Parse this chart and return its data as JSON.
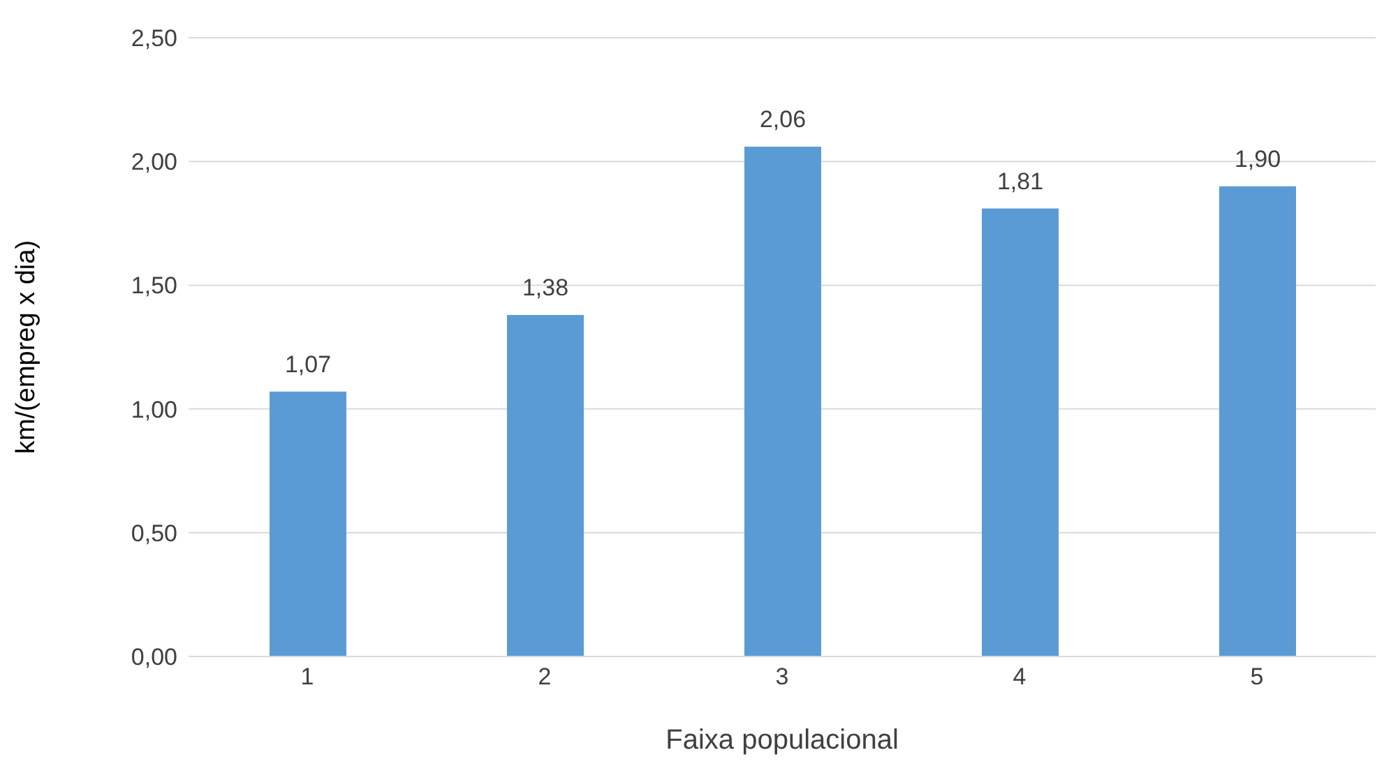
{
  "chart_data": {
    "type": "bar",
    "xlabel": "Faixa populacional",
    "ylabel": "km/(empreg x dia)",
    "categories": [
      "1",
      "2",
      "3",
      "4",
      "5"
    ],
    "values": [
      1.07,
      1.38,
      2.06,
      1.81,
      1.9
    ],
    "value_labels": [
      "1,07",
      "1,38",
      "2,06",
      "1,81",
      "1,90"
    ],
    "color": "#5b9bd5",
    "ylim": [
      0,
      2.5
    ],
    "yticks": [
      {
        "value": 0,
        "label": "0,00"
      },
      {
        "value": 0.5,
        "label": "0,50"
      },
      {
        "value": 1,
        "label": "1,00"
      },
      {
        "value": 1.5,
        "label": "1,50"
      },
      {
        "value": 2,
        "label": "2,00"
      },
      {
        "value": 2.5,
        "label": "2,50"
      }
    ],
    "grid": "y",
    "legend": false
  }
}
